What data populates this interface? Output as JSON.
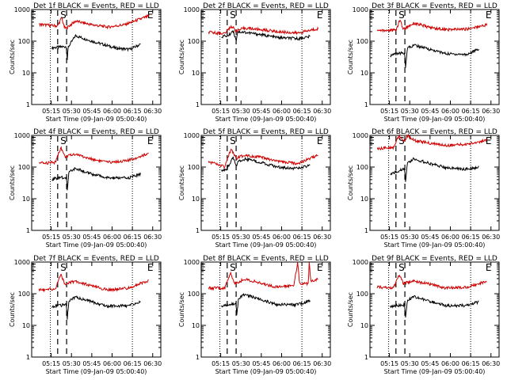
{
  "chart_data": [
    {
      "type": "line",
      "title": "Det 1f BLACK = Events, RED = LLD",
      "ylabel": "Counts/sec",
      "xlabel": "Start Time (09-Jan-09 05:00:40)",
      "x_ticks": [
        "05:15",
        "05:30",
        "05:45",
        "06:00",
        "06:15",
        "06:30"
      ],
      "y_ticks": [
        "1",
        "10",
        "100",
        "1000"
      ],
      "yscale": "log",
      "ylim": [
        1,
        1000
      ],
      "markers": [
        "E",
        "S",
        "E"
      ],
      "series": [
        {
          "name": "Events",
          "color": "#000000",
          "knots": [
            [
              5.26,
              62
            ],
            [
              5.44,
              68
            ],
            [
              5.445,
              20
            ],
            [
              5.46,
              65
            ],
            [
              5.55,
              150
            ],
            [
              5.75,
              100
            ],
            [
              5.92,
              75
            ],
            [
              6.05,
              60
            ],
            [
              6.22,
              55
            ],
            [
              6.35,
              80
            ]
          ]
        },
        {
          "name": "LLD",
          "color": "#d00000",
          "knots": [
            [
              5.1,
              340
            ],
            [
              5.33,
              300
            ],
            [
              5.38,
              560
            ],
            [
              5.41,
              280
            ],
            [
              5.43,
              250
            ],
            [
              5.55,
              430
            ],
            [
              5.75,
              330
            ],
            [
              5.95,
              280
            ],
            [
              6.15,
              330
            ],
            [
              6.45,
              620
            ]
          ]
        }
      ]
    },
    {
      "type": "line",
      "title": "Det 2f BLACK = Events, RED = LLD",
      "ylabel": "Counts/sec",
      "xlabel": "Start Time (09-Jan-09 05:00:40)",
      "x_ticks": [
        "05:15",
        "05:30",
        "05:45",
        "06:00",
        "06:15",
        "06:30"
      ],
      "y_ticks": [
        "1",
        "10",
        "100",
        "1000"
      ],
      "yscale": "log",
      "ylim": [
        1,
        1000
      ],
      "markers": [
        "E",
        "S",
        "E"
      ],
      "series": [
        {
          "name": "Events",
          "color": "#000000",
          "knots": [
            [
              5.26,
              140
            ],
            [
              5.35,
              150
            ],
            [
              5.4,
              220
            ],
            [
              5.44,
              110
            ],
            [
              5.46,
              200
            ],
            [
              5.55,
              190
            ],
            [
              5.75,
              160
            ],
            [
              5.95,
              130
            ],
            [
              6.2,
              120
            ],
            [
              6.35,
              140
            ]
          ]
        },
        {
          "name": "LLD",
          "color": "#d00000",
          "knots": [
            [
              5.1,
              190
            ],
            [
              5.3,
              175
            ],
            [
              5.38,
              300
            ],
            [
              5.44,
              210
            ],
            [
              5.55,
              260
            ],
            [
              5.75,
              230
            ],
            [
              5.95,
              200
            ],
            [
              6.2,
              180
            ],
            [
              6.45,
              250
            ]
          ]
        }
      ]
    },
    {
      "type": "line",
      "title": "Det 3f BLACK = Events, RED = LLD",
      "ylabel": "Counts/sec",
      "xlabel": "Start Time (09-Jan-09 05:00:40)",
      "x_ticks": [
        "05:15",
        "05:30",
        "05:45",
        "06:00",
        "06:15",
        "06:30"
      ],
      "y_ticks": [
        "1",
        "10",
        "100",
        "1000"
      ],
      "yscale": "log",
      "ylim": [
        1,
        1000
      ],
      "markers": [
        "E",
        "S",
        "E"
      ],
      "series": [
        {
          "name": "Events",
          "color": "#000000",
          "knots": [
            [
              5.26,
              35
            ],
            [
              5.33,
              40
            ],
            [
              5.44,
              42
            ],
            [
              5.445,
              12
            ],
            [
              5.47,
              60
            ],
            [
              5.55,
              75
            ],
            [
              5.75,
              55
            ],
            [
              5.95,
              40
            ],
            [
              6.2,
              38
            ],
            [
              6.35,
              55
            ]
          ]
        },
        {
          "name": "LLD",
          "color": "#d00000",
          "knots": [
            [
              5.1,
              220
            ],
            [
              5.33,
              220
            ],
            [
              5.38,
              480
            ],
            [
              5.42,
              240
            ],
            [
              5.55,
              370
            ],
            [
              5.75,
              270
            ],
            [
              5.95,
              230
            ],
            [
              6.2,
              240
            ],
            [
              6.45,
              330
            ]
          ]
        }
      ]
    },
    {
      "type": "line",
      "title": "Det 4f BLACK = Events, RED = LLD",
      "ylabel": "Counts/sec",
      "xlabel": "Start Time (09-Jan-09 05:00:40)",
      "x_ticks": [
        "05:15",
        "05:30",
        "05:45",
        "06:00",
        "06:15",
        "06:30"
      ],
      "y_ticks": [
        "1",
        "10",
        "100",
        "1000"
      ],
      "yscale": "log",
      "ylim": [
        1,
        1000
      ],
      "markers": [
        "E",
        "S",
        "E"
      ],
      "series": [
        {
          "name": "Events",
          "color": "#000000",
          "knots": [
            [
              5.26,
              40
            ],
            [
              5.33,
              45
            ],
            [
              5.44,
              48
            ],
            [
              5.445,
              15
            ],
            [
              5.47,
              70
            ],
            [
              5.55,
              90
            ],
            [
              5.75,
              60
            ],
            [
              5.95,
              45
            ],
            [
              6.2,
              45
            ],
            [
              6.35,
              60
            ]
          ]
        },
        {
          "name": "LLD",
          "color": "#d00000",
          "knots": [
            [
              5.1,
              130
            ],
            [
              5.3,
              140
            ],
            [
              5.37,
              420
            ],
            [
              5.42,
              210
            ],
            [
              5.55,
              260
            ],
            [
              5.7,
              190
            ],
            [
              5.95,
              140
            ],
            [
              6.2,
              160
            ],
            [
              6.45,
              270
            ]
          ]
        }
      ]
    },
    {
      "type": "line",
      "title": "Det 5f BLACK = Events, RED = LLD",
      "ylabel": "Counts/sec",
      "xlabel": "Start Time (09-Jan-09 05:00:40)",
      "x_ticks": [
        "05:15",
        "05:30",
        "05:45",
        "06:00",
        "06:15",
        "06:30"
      ],
      "y_ticks": [
        "1",
        "10",
        "100",
        "1000"
      ],
      "yscale": "log",
      "ylim": [
        1,
        1000
      ],
      "markers": [
        "E",
        "S",
        "E"
      ],
      "series": [
        {
          "name": "Events",
          "color": "#000000",
          "knots": [
            [
              5.26,
              80
            ],
            [
              5.33,
              90
            ],
            [
              5.4,
              200
            ],
            [
              5.44,
              110
            ],
            [
              5.47,
              160
            ],
            [
              5.55,
              180
            ],
            [
              5.75,
              140
            ],
            [
              5.95,
              100
            ],
            [
              6.2,
              90
            ],
            [
              6.35,
              110
            ]
          ]
        },
        {
          "name": "LLD",
          "color": "#d00000",
          "knots": [
            [
              5.1,
              150
            ],
            [
              5.3,
              100
            ],
            [
              5.38,
              380
            ],
            [
              5.44,
              190
            ],
            [
              5.55,
              240
            ],
            [
              5.75,
              200
            ],
            [
              5.95,
              150
            ],
            [
              6.2,
              130
            ],
            [
              6.45,
              240
            ]
          ]
        }
      ]
    },
    {
      "type": "line",
      "title": "Det 6f BLACK = Events, RED = LLD",
      "ylabel": "Counts/sec",
      "xlabel": "Start Time (09-Jan-09 05:00:40)",
      "x_ticks": [
        "05:15",
        "05:30",
        "05:45",
        "06:00",
        "06:15",
        "06:30"
      ],
      "y_ticks": [
        "1",
        "10",
        "100",
        "1000"
      ],
      "yscale": "log",
      "ylim": [
        1,
        1000
      ],
      "markers": [
        "E",
        "S",
        "E"
      ],
      "series": [
        {
          "name": "Events",
          "color": "#000000",
          "knots": [
            [
              5.26,
              60
            ],
            [
              5.33,
              70
            ],
            [
              5.44,
              90
            ],
            [
              5.445,
              30
            ],
            [
              5.47,
              130
            ],
            [
              5.55,
              180
            ],
            [
              5.75,
              130
            ],
            [
              5.95,
              95
            ],
            [
              6.2,
              85
            ],
            [
              6.35,
              100
            ]
          ]
        },
        {
          "name": "LLD",
          "color": "#d00000",
          "knots": [
            [
              5.1,
              380
            ],
            [
              5.3,
              420
            ],
            [
              5.37,
              1000
            ],
            [
              5.42,
              620
            ],
            [
              5.48,
              980
            ],
            [
              5.55,
              700
            ],
            [
              5.75,
              560
            ],
            [
              5.95,
              480
            ],
            [
              6.2,
              520
            ],
            [
              6.45,
              700
            ]
          ]
        }
      ]
    },
    {
      "type": "line",
      "title": "Det 7f BLACK = Events, RED = LLD",
      "ylabel": "Counts/sec",
      "xlabel": "Start Time (09-Jan-09 05:00:40)",
      "x_ticks": [
        "05:15",
        "05:30",
        "05:45",
        "06:00",
        "06:15",
        "06:30"
      ],
      "y_ticks": [
        "1",
        "10",
        "100",
        "1000"
      ],
      "yscale": "log",
      "ylim": [
        1,
        1000
      ],
      "markers": [
        "E",
        "S",
        "E"
      ],
      "series": [
        {
          "name": "Events",
          "color": "#000000",
          "knots": [
            [
              5.26,
              38
            ],
            [
              5.33,
              42
            ],
            [
              5.44,
              45
            ],
            [
              5.445,
              14
            ],
            [
              5.47,
              60
            ],
            [
              5.55,
              80
            ],
            [
              5.75,
              55
            ],
            [
              5.95,
              40
            ],
            [
              6.2,
              42
            ],
            [
              6.35,
              55
            ]
          ]
        },
        {
          "name": "LLD",
          "color": "#d00000",
          "knots": [
            [
              5.1,
              130
            ],
            [
              5.3,
              140
            ],
            [
              5.37,
              410
            ],
            [
              5.42,
              200
            ],
            [
              5.55,
              250
            ],
            [
              5.7,
              190
            ],
            [
              5.95,
              130
            ],
            [
              6.2,
              150
            ],
            [
              6.45,
              260
            ]
          ]
        }
      ]
    },
    {
      "type": "line",
      "title": "Det 8f BLACK = Events, RED = LLD",
      "ylabel": "Counts/sec",
      "xlabel": "Start Time (09-Jan-09 05:00:40)",
      "x_ticks": [
        "05:15",
        "05:30",
        "05:45",
        "06:00",
        "06:15",
        "06:30"
      ],
      "y_ticks": [
        "1",
        "10",
        "100",
        "1000"
      ],
      "yscale": "log",
      "ylim": [
        1,
        1000
      ],
      "markers": [
        "E",
        "S",
        "E"
      ],
      "series": [
        {
          "name": "Events",
          "color": "#000000",
          "knots": [
            [
              5.26,
              40
            ],
            [
              5.33,
              45
            ],
            [
              5.44,
              50
            ],
            [
              5.445,
              18
            ],
            [
              5.47,
              70
            ],
            [
              5.55,
              95
            ],
            [
              5.75,
              65
            ],
            [
              5.95,
              45
            ],
            [
              6.2,
              45
            ],
            [
              6.35,
              60
            ]
          ]
        },
        {
          "name": "LLD",
          "color": "#d00000",
          "knots": [
            [
              5.1,
              150
            ],
            [
              5.3,
              150
            ],
            [
              5.37,
              470
            ],
            [
              5.42,
              210
            ],
            [
              5.55,
              290
            ],
            [
              5.75,
              210
            ],
            [
              5.95,
              160
            ],
            [
              6.15,
              190
            ],
            [
              6.2,
              1000
            ],
            [
              6.22,
              200
            ],
            [
              6.33,
              210
            ],
            [
              6.34,
              1000
            ],
            [
              6.36,
              240
            ],
            [
              6.45,
              300
            ]
          ]
        }
      ]
    },
    {
      "type": "line",
      "title": "Det 9f BLACK = Events, RED = LLD",
      "ylabel": "Counts/sec",
      "xlabel": "Start Time (09-Jan-09 05:00:40)",
      "x_ticks": [
        "05:15",
        "05:30",
        "05:45",
        "06:00",
        "06:15",
        "06:30"
      ],
      "y_ticks": [
        "1",
        "10",
        "100",
        "1000"
      ],
      "yscale": "log",
      "ylim": [
        1,
        1000
      ],
      "markers": [
        "E",
        "S",
        "E"
      ],
      "series": [
        {
          "name": "Events",
          "color": "#000000",
          "knots": [
            [
              5.26,
              38
            ],
            [
              5.33,
              42
            ],
            [
              5.44,
              45
            ],
            [
              5.445,
              14
            ],
            [
              5.47,
              60
            ],
            [
              5.55,
              80
            ],
            [
              5.75,
              58
            ],
            [
              5.95,
              42
            ],
            [
              6.2,
              42
            ],
            [
              6.35,
              55
            ]
          ]
        },
        {
          "name": "LLD",
          "color": "#d00000",
          "knots": [
            [
              5.1,
              160
            ],
            [
              5.3,
              150
            ],
            [
              5.37,
              400
            ],
            [
              5.42,
              210
            ],
            [
              5.55,
              250
            ],
            [
              5.75,
              200
            ],
            [
              5.95,
              150
            ],
            [
              6.2,
              160
            ],
            [
              6.45,
              250
            ]
          ]
        }
      ]
    }
  ]
}
